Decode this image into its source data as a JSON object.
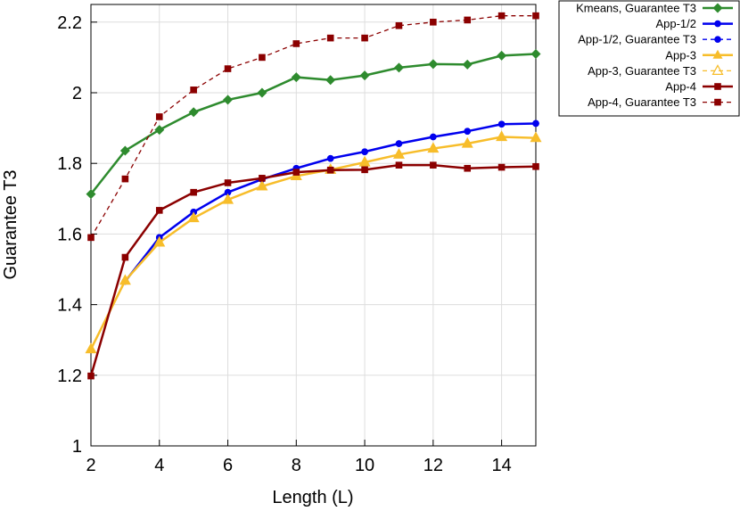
{
  "chart_data": {
    "type": "line",
    "xlabel": "Length (L)",
    "ylabel": "Guarantee T3",
    "xlim": [
      2,
      15
    ],
    "ylim": [
      1,
      2.25
    ],
    "xticks": [
      2,
      4,
      6,
      8,
      10,
      12,
      14
    ],
    "yticks": [
      1,
      1.2,
      1.4,
      1.6,
      1.8,
      2,
      2.2
    ],
    "ytick_labels": [
      "1",
      "1.2",
      "1.4",
      "1.6",
      "1.8",
      "2",
      "2.2"
    ],
    "grid": true,
    "legend_position": "top-right",
    "x": [
      2,
      3,
      4,
      5,
      6,
      7,
      8,
      9,
      10,
      11,
      12,
      13,
      14,
      15
    ],
    "series": [
      {
        "name": "Kmeans, Guarantee T3",
        "color": "#2e8b2e",
        "marker": "diamond",
        "dash": false,
        "values": [
          1.713,
          1.836,
          1.895,
          1.945,
          1.98,
          2.0,
          2.044,
          2.036,
          2.049,
          2.071,
          2.081,
          2.08,
          2.105,
          2.11
        ]
      },
      {
        "name": "App-1/2",
        "color": "#0000ee",
        "marker": "circle",
        "dash": false,
        "values": [
          null,
          1.466,
          1.59,
          1.662,
          1.718,
          1.755,
          1.786,
          1.814,
          1.833,
          1.856,
          1.875,
          1.891,
          1.911,
          1.913
        ]
      },
      {
        "name": "App-1/2, Guarantee T3",
        "color": "#0000ee",
        "marker": "circle",
        "dash": true,
        "values": [
          null,
          1.466,
          1.59,
          1.662,
          1.718,
          1.755,
          1.786,
          1.814,
          1.833,
          1.856,
          1.875,
          1.891,
          1.911,
          1.913
        ]
      },
      {
        "name": "App-3",
        "color": "#f7bd2a",
        "marker": "triangle",
        "dash": false,
        "values": [
          1.274,
          1.468,
          1.576,
          1.645,
          1.697,
          1.735,
          1.764,
          1.782,
          1.803,
          1.825,
          1.842,
          1.856,
          1.875,
          1.872
        ]
      },
      {
        "name": "App-3, Guarantee T3",
        "color": "#f7bd2a",
        "marker": "triangle-open",
        "dash": true,
        "values": [
          1.274,
          1.468,
          1.576,
          1.645,
          1.697,
          1.735,
          1.764,
          1.782,
          1.803,
          1.825,
          1.842,
          1.856,
          1.875,
          1.872
        ]
      },
      {
        "name": "App-4",
        "color": "#8b0000",
        "marker": "square",
        "dash": false,
        "values": [
          1.198,
          1.534,
          1.667,
          1.718,
          1.745,
          1.758,
          1.775,
          1.781,
          1.782,
          1.795,
          1.795,
          1.786,
          1.789,
          1.791
        ]
      },
      {
        "name": "App-4, Guarantee T3",
        "color": "#8b0000",
        "marker": "square",
        "dash": true,
        "values": [
          1.59,
          1.756,
          1.932,
          2.008,
          2.068,
          2.1,
          2.139,
          2.155,
          2.155,
          2.19,
          2.2,
          2.206,
          2.218,
          2.218
        ]
      }
    ]
  }
}
